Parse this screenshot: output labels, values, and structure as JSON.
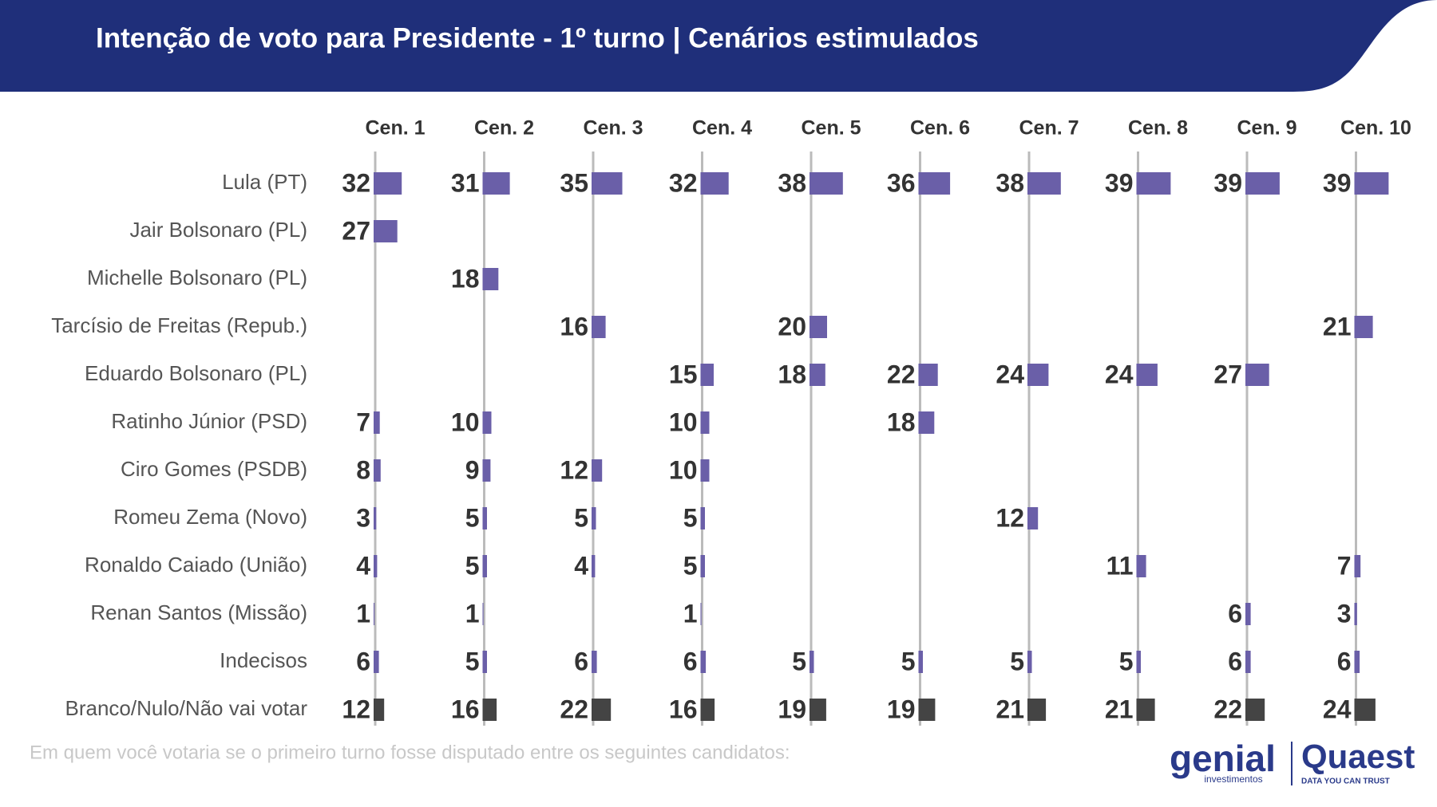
{
  "chart_data": {
    "type": "bar",
    "title": "Intenção de voto para Presidente - 1º turno | Cenários estimulados",
    "note": "Em quem você votaria se o primeiro turno fosse disputado entre os seguintes candidatos:",
    "logos": [
      "genial",
      "investimentos",
      "Quaest",
      "DATA YOU CAN TRUST"
    ],
    "categories": [
      "Lula (PT)",
      "Jair Bolsonaro (PL)",
      "Michelle Bolsonaro (PL)",
      "Tarcísio de Freitas (Repub.)",
      "Eduardo Bolsonaro (PL)",
      "Ratinho Júnior (PSD)",
      "Ciro Gomes (PSDB)",
      "Romeu Zema (Novo)",
      "Ronaldo Caiado (União)",
      "Renan Santos (Missão)",
      "Indecisos",
      "Branco/Nulo/Não vai votar"
    ],
    "category_colors": [
      "#6a5fa8",
      "#6a5fa8",
      "#6a5fa8",
      "#6a5fa8",
      "#6a5fa8",
      "#6a5fa8",
      "#6a5fa8",
      "#6a5fa8",
      "#6a5fa8",
      "#6a5fa8",
      "#6a5fa8",
      "#444444"
    ],
    "series": [
      {
        "name": "Cen. 1",
        "values": [
          32,
          27,
          null,
          null,
          null,
          7,
          8,
          3,
          4,
          1,
          6,
          12
        ]
      },
      {
        "name": "Cen. 2",
        "values": [
          31,
          null,
          18,
          null,
          null,
          10,
          9,
          5,
          5,
          1,
          5,
          16
        ]
      },
      {
        "name": "Cen. 3",
        "values": [
          35,
          null,
          null,
          16,
          null,
          null,
          12,
          5,
          4,
          null,
          6,
          22
        ]
      },
      {
        "name": "Cen. 4",
        "values": [
          32,
          null,
          null,
          null,
          15,
          10,
          10,
          5,
          5,
          1,
          6,
          16
        ]
      },
      {
        "name": "Cen. 5",
        "values": [
          38,
          null,
          null,
          20,
          18,
          null,
          null,
          null,
          null,
          null,
          5,
          19
        ]
      },
      {
        "name": "Cen. 6",
        "values": [
          36,
          null,
          null,
          null,
          22,
          18,
          null,
          null,
          null,
          null,
          5,
          19
        ]
      },
      {
        "name": "Cen. 7",
        "values": [
          38,
          null,
          null,
          null,
          24,
          null,
          null,
          12,
          null,
          null,
          5,
          21
        ]
      },
      {
        "name": "Cen. 8",
        "values": [
          39,
          null,
          null,
          null,
          24,
          null,
          null,
          null,
          11,
          null,
          5,
          21
        ]
      },
      {
        "name": "Cen. 9",
        "values": [
          39,
          null,
          null,
          null,
          27,
          null,
          null,
          null,
          null,
          6,
          6,
          22
        ]
      },
      {
        "name": "Cen. 10",
        "values": [
          39,
          null,
          null,
          21,
          null,
          null,
          null,
          null,
          7,
          3,
          6,
          24
        ]
      }
    ]
  }
}
